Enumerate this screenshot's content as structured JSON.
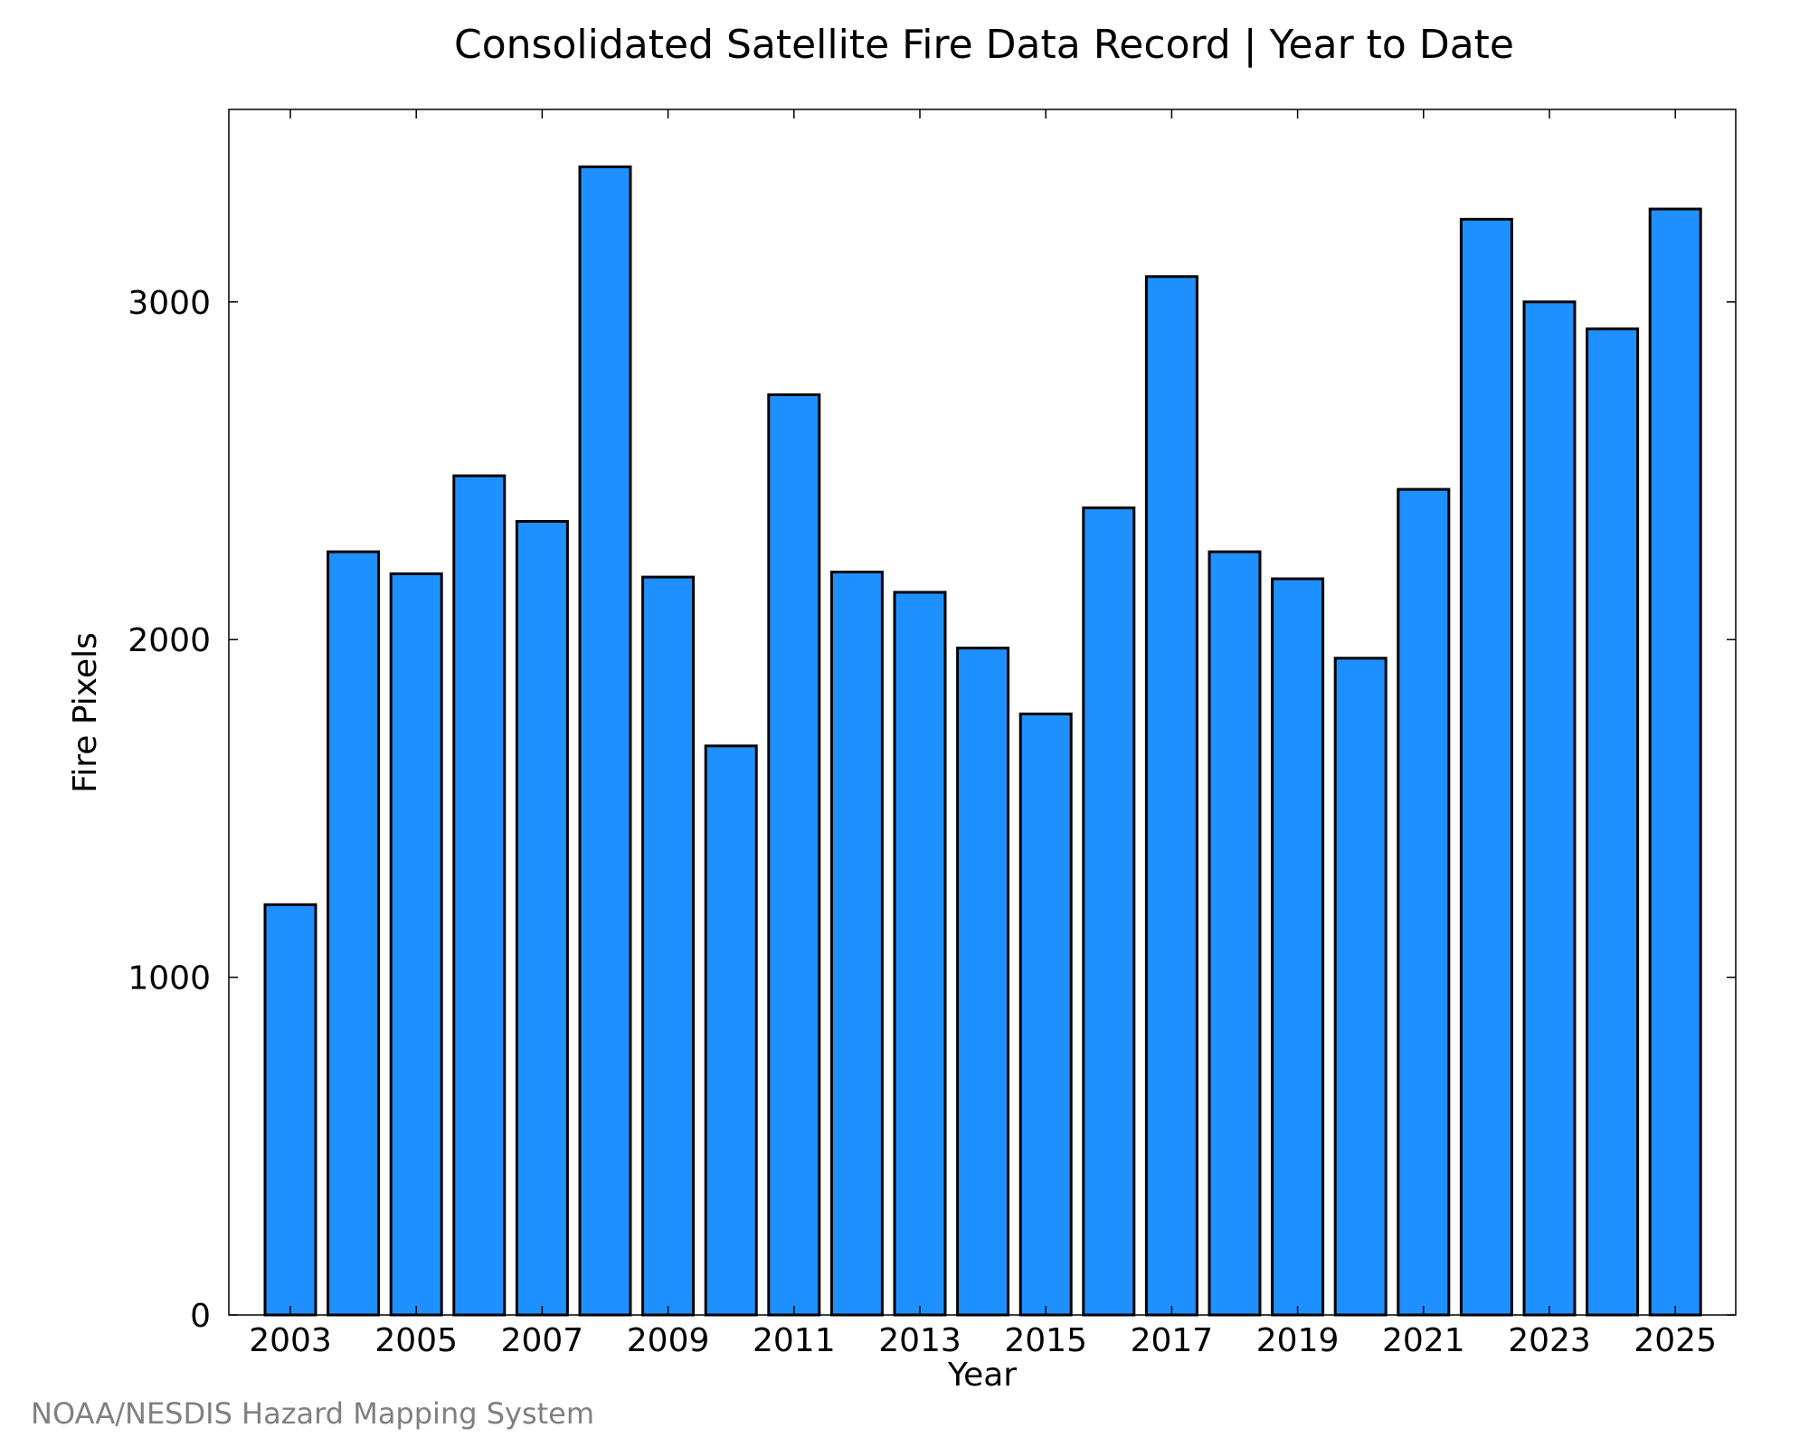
{
  "chart_data": {
    "type": "bar",
    "title": "Consolidated Satellite Fire Data Record | Year to Date",
    "xlabel": "Year",
    "ylabel": "Fire Pixels",
    "categories": [
      "2003",
      "2004",
      "2005",
      "2006",
      "2007",
      "2008",
      "2009",
      "2010",
      "2011",
      "2012",
      "2013",
      "2014",
      "2015",
      "2016",
      "2017",
      "2018",
      "2019",
      "2020",
      "2021",
      "2022",
      "2023",
      "2024",
      "2025"
    ],
    "values": [
      1215,
      2260,
      2195,
      2485,
      2350,
      3400,
      2185,
      1685,
      2725,
      2200,
      2140,
      1975,
      1780,
      2390,
      3075,
      2260,
      2180,
      1945,
      2445,
      3245,
      3000,
      2920,
      3275
    ],
    "x_tick_labels": [
      "2003",
      "2005",
      "2007",
      "2009",
      "2011",
      "2013",
      "2015",
      "2017",
      "2019",
      "2021",
      "2023",
      "2025"
    ],
    "y_ticks": [
      0,
      1000,
      2000,
      3000
    ],
    "y_tick_labels": [
      "0",
      "1000",
      "2000",
      "3000"
    ],
    "ylim": [
      0,
      3570
    ],
    "bar_color": "#1e90ff",
    "edge_color": "#000000",
    "grid": false,
    "legend": "none"
  },
  "credit": "NOAA/NESDIS Hazard Mapping System"
}
